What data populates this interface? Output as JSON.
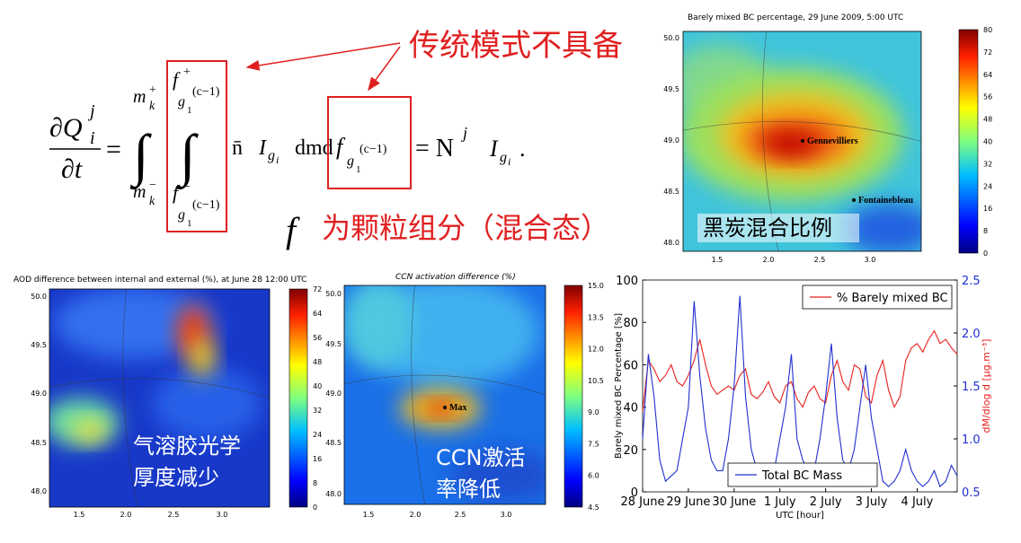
{
  "slide": {
    "traditional": "传统模式不具备",
    "f_symbol": "f",
    "f_note": "为颗粒组分（混合态）"
  },
  "equation": {
    "lhs_num": "∂Q",
    "lhs_sup": "j",
    "lhs_sub": "i",
    "lhs_den": "∂t",
    "equals": "=",
    "integral": "∫",
    "outer_upper": "m",
    "outer_upper_sup": "+",
    "outer_upper_sub": "k",
    "outer_lower": "m",
    "outer_lower_sup": "−",
    "outer_lower_sub": "k",
    "inner_upper": "f",
    "inner_upper_sup": "+",
    "inner_upper_sub": "g",
    "inner_upper_subsub": "1",
    "inner_upper_subsup": "(c−1)",
    "inner_lower": "f",
    "inner_lower_sup": "−",
    "inner_lower_sub": "g",
    "inner_lower_subsub": "1",
    "inner_lower_subsup": "(c−1)",
    "nbar": "n̄",
    "I": "I",
    "I_sub": "g",
    "I_subsub": "i",
    "dmd": "dmd",
    "df": "f",
    "df_sub": "g",
    "df_subsub": "1",
    "df_subsup": "(c−1)",
    "rhs": "= N",
    "rhs_sup": "j",
    "rhs_I": "I",
    "rhs_sub": "g",
    "rhs_subsub": "i",
    "end": "."
  },
  "maps": [
    {
      "title": "Barely mixed BC percentage, 29 June 2009, 5:00 UTC",
      "xticks": [
        "1.5",
        "2.0",
        "2.5",
        "3.0"
      ],
      "yticks": [
        "50.0",
        "49.5",
        "49.0",
        "48.5",
        "48.0"
      ],
      "colorbar": [
        "0",
        "8",
        "16",
        "24",
        "32",
        "40",
        "48",
        "56",
        "64",
        "72",
        "80"
      ],
      "annotations": [
        "Gennevilliers",
        "Fontainebleau"
      ],
      "overlay": [
        "黑炭混合比例"
      ]
    },
    {
      "title": "AOD difference between internal and external (%), at June 28 12:00 UTC",
      "xticks": [
        "1.5",
        "2.0",
        "2.5",
        "3.0"
      ],
      "yticks": [
        "50.0",
        "49.5",
        "49.0",
        "48.5",
        "48.0"
      ],
      "colorbar": [
        "0",
        "8",
        "16",
        "24",
        "32",
        "40",
        "48",
        "56",
        "64",
        "72"
      ],
      "annotations": [],
      "overlay": [
        "气溶胶光学",
        "厚度减少"
      ]
    },
    {
      "title": "CCN activation difference (%)",
      "xticks": [
        "1.5",
        "2.0",
        "2.5",
        "3.0"
      ],
      "yticks": [
        "50.0",
        "49.5",
        "49.0",
        "48.5",
        "48.0"
      ],
      "colorbar": [
        "4.5",
        "6.0",
        "7.5",
        "9.0",
        "10.5",
        "12.0",
        "13.5",
        "15.0"
      ],
      "annotations": [
        "Max"
      ],
      "overlay": [
        "CCN激活",
        "率降低"
      ]
    }
  ],
  "chart_data": {
    "type": "line",
    "xlabel": "UTC [hour]",
    "ylabel": "Barely mixed BC Percentage [%]",
    "y2label": "dM/dlog d [μg.m⁻³]",
    "x": [
      0,
      3,
      6,
      9,
      12,
      15,
      18,
      21,
      24,
      27,
      30,
      33,
      36,
      39,
      42,
      45,
      48,
      51,
      54,
      57,
      60,
      63,
      66,
      69,
      72,
      75,
      78,
      81,
      84,
      87,
      90,
      93,
      96,
      99,
      102,
      105,
      108,
      111,
      114,
      117,
      120,
      123,
      126,
      129,
      132,
      135,
      138,
      141,
      144,
      147,
      150,
      153,
      156,
      159,
      162,
      165
    ],
    "xlim": [
      0,
      165
    ],
    "xticks": [
      {
        "value": 0,
        "label": "28 June"
      },
      {
        "value": 24,
        "label": "29 June"
      },
      {
        "value": 48,
        "label": "30 June"
      },
      {
        "value": 72,
        "label": "1 July"
      },
      {
        "value": 96,
        "label": "2 July"
      },
      {
        "value": 120,
        "label": "3 July"
      },
      {
        "value": 144,
        "label": "4 July"
      }
    ],
    "ylim": [
      0,
      100
    ],
    "yticks": [
      0,
      20,
      40,
      60,
      80,
      100
    ],
    "y2lim": [
      0.5,
      2.5
    ],
    "y2ticks": [
      0.5,
      {
        "value": 1,
        "label": "1.0"
      },
      1.5,
      {
        "value": 2,
        "label": "2.0"
      },
      2.5
    ],
    "series": [
      {
        "name": "% Barely mixed BC",
        "color": "#e8201c",
        "legend": "upper right",
        "values": [
          38,
          62,
          58,
          52,
          55,
          60,
          52,
          50,
          55,
          62,
          72,
          60,
          50,
          46,
          48,
          50,
          48,
          55,
          58,
          46,
          44,
          47,
          52,
          45,
          42,
          50,
          52,
          44,
          40,
          47,
          50,
          44,
          42,
          55,
          62,
          52,
          48,
          60,
          58,
          45,
          42,
          55,
          62,
          48,
          40,
          45,
          62,
          68,
          70,
          66,
          72,
          76,
          70,
          72,
          68,
          65
        ]
      },
      {
        "name": "Total BC Mass",
        "color": "#2030d0",
        "axis": "y2",
        "legend": "lower center",
        "values": [
          1.0,
          1.8,
          1.4,
          0.8,
          0.6,
          0.65,
          0.7,
          1.0,
          1.3,
          2.3,
          1.6,
          1.1,
          0.8,
          0.7,
          0.7,
          1.0,
          1.5,
          2.35,
          1.4,
          0.9,
          0.7,
          0.6,
          0.6,
          0.7,
          1.0,
          1.3,
          1.8,
          1.0,
          0.8,
          0.7,
          0.7,
          1.0,
          1.4,
          1.9,
          1.2,
          0.8,
          0.7,
          0.9,
          1.3,
          1.7,
          1.2,
          0.9,
          0.6,
          0.55,
          0.6,
          0.7,
          0.9,
          0.7,
          0.6,
          0.55,
          0.6,
          0.7,
          0.55,
          0.6,
          0.75,
          0.65
        ]
      }
    ]
  }
}
